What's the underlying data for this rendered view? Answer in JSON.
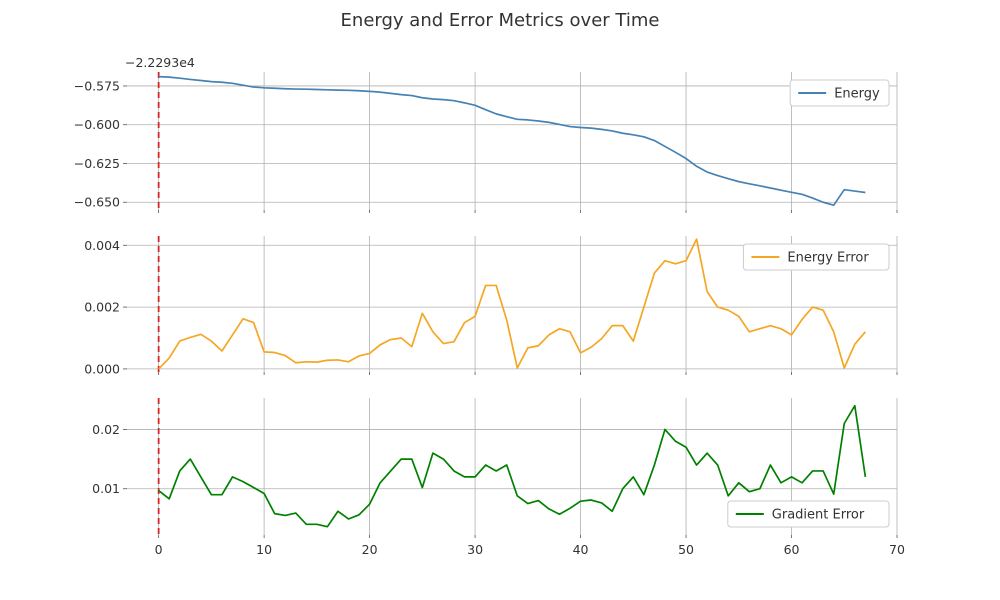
{
  "chart_data": {
    "title": "Energy and Error Metrics over Time",
    "marker_x": 0,
    "x_ticks": [
      0,
      10,
      20,
      30,
      40,
      50,
      60,
      70
    ],
    "xlim": [
      -3,
      70
    ],
    "panels": [
      {
        "type": "line",
        "series_name": "Energy",
        "color": "#4682b4",
        "offset_label": "−2.2293e4",
        "ylim": [
          -0.655,
          -0.566
        ],
        "y_ticks": [
          -0.575,
          -0.6,
          -0.625,
          -0.65
        ],
        "y_tick_labels": [
          "−0.575",
          "−0.600",
          "−0.625",
          "−0.650"
        ],
        "legend_position": "top-right",
        "x": [
          0,
          1,
          2,
          3,
          4,
          5,
          6,
          7,
          8,
          9,
          10,
          11,
          12,
          13,
          14,
          15,
          16,
          17,
          18,
          19,
          20,
          21,
          22,
          23,
          24,
          25,
          26,
          27,
          28,
          29,
          30,
          31,
          32,
          33,
          34,
          35,
          36,
          37,
          38,
          39,
          40,
          41,
          42,
          43,
          44,
          45,
          46,
          47,
          48,
          49,
          50,
          51,
          52,
          53,
          54,
          55,
          56,
          57,
          58,
          59,
          60,
          61,
          62,
          63,
          64,
          65,
          66,
          67
        ],
        "y": [
          -0.569,
          -0.5693,
          -0.57,
          -0.5708,
          -0.5715,
          -0.5722,
          -0.5726,
          -0.5733,
          -0.5745,
          -0.5757,
          -0.5762,
          -0.5765,
          -0.5768,
          -0.577,
          -0.5771,
          -0.5773,
          -0.5775,
          -0.5777,
          -0.5778,
          -0.5781,
          -0.5785,
          -0.579,
          -0.5798,
          -0.5806,
          -0.5812,
          -0.5826,
          -0.5834,
          -0.5838,
          -0.5845,
          -0.5859,
          -0.5875,
          -0.5903,
          -0.593,
          -0.5948,
          -0.5965,
          -0.5969,
          -0.5976,
          -0.5985,
          -0.5998,
          -0.6012,
          -0.6018,
          -0.6022,
          -0.603,
          -0.604,
          -0.6055,
          -0.6065,
          -0.6078,
          -0.6102,
          -0.614,
          -0.6178,
          -0.6218,
          -0.6268,
          -0.6305,
          -0.6328,
          -0.6348,
          -0.6367,
          -0.6381,
          -0.6394,
          -0.6408,
          -0.6422,
          -0.6436,
          -0.6449,
          -0.6473,
          -0.65,
          -0.6519,
          -0.6419,
          -0.6428,
          -0.6437
        ]
      },
      {
        "type": "line",
        "series_name": "Energy Error",
        "color": "#f5a623",
        "ylim": [
          -0.0001,
          0.0043
        ],
        "y_ticks": [
          0.0,
          0.002,
          0.004
        ],
        "y_tick_labels": [
          "0.000",
          "0.002",
          "0.004"
        ],
        "legend_position": "top-right",
        "x": [
          0,
          1,
          2,
          3,
          4,
          5,
          6,
          7,
          8,
          9,
          10,
          11,
          12,
          13,
          14,
          15,
          16,
          17,
          18,
          19,
          20,
          21,
          22,
          23,
          24,
          25,
          26,
          27,
          28,
          29,
          30,
          31,
          32,
          33,
          34,
          35,
          36,
          37,
          38,
          39,
          40,
          41,
          42,
          43,
          44,
          45,
          46,
          47,
          48,
          49,
          50,
          51,
          52,
          53,
          54,
          55,
          56,
          57,
          58,
          59,
          60,
          61,
          62,
          63,
          64,
          65,
          66,
          67
        ],
        "y": [
          0.0,
          0.00035,
          0.0009,
          0.00102,
          0.00112,
          0.0009,
          0.00058,
          0.0011,
          0.00162,
          0.0015,
          0.00055,
          0.00053,
          0.00043,
          0.0002,
          0.00023,
          0.00022,
          0.00028,
          0.00029,
          0.00023,
          0.00042,
          0.0005,
          0.00078,
          0.00095,
          0.001,
          0.00072,
          0.0018,
          0.0012,
          0.00082,
          0.00088,
          0.0015,
          0.0017,
          0.0027,
          0.0027,
          0.00158,
          3e-05,
          0.00068,
          0.00075,
          0.0011,
          0.0013,
          0.0012,
          0.00052,
          0.0007,
          0.00098,
          0.0014,
          0.0014,
          0.0009,
          0.002,
          0.0031,
          0.0035,
          0.0034,
          0.0035,
          0.0042,
          0.0025,
          0.002,
          0.0019,
          0.0017,
          0.0012,
          0.0013,
          0.0014,
          0.0013,
          0.0011,
          0.0016,
          0.002,
          0.0019,
          0.0012,
          3e-05,
          0.0008,
          0.0012
        ]
      },
      {
        "type": "line",
        "series_name": "Gradient Error",
        "color": "#008000",
        "ylim": [
          0.0022,
          0.0253
        ],
        "y_ticks": [
          0.01,
          0.02
        ],
        "y_tick_labels": [
          "0.01",
          "0.02"
        ],
        "legend_position": "bottom-right",
        "x": [
          0,
          1,
          2,
          3,
          4,
          5,
          6,
          7,
          8,
          9,
          10,
          11,
          12,
          13,
          14,
          15,
          16,
          17,
          18,
          19,
          20,
          21,
          22,
          23,
          24,
          25,
          26,
          27,
          28,
          29,
          30,
          31,
          32,
          33,
          34,
          35,
          36,
          37,
          38,
          39,
          40,
          41,
          42,
          43,
          44,
          45,
          46,
          47,
          48,
          49,
          50,
          51,
          52,
          53,
          54,
          55,
          56,
          57,
          58,
          59,
          60,
          61,
          62,
          63,
          64,
          65,
          66,
          67
        ],
        "y": [
          0.0097,
          0.0083,
          0.013,
          0.015,
          0.012,
          0.009,
          0.009,
          0.012,
          0.0112,
          0.0102,
          0.0092,
          0.0058,
          0.0055,
          0.0059,
          0.004,
          0.004,
          0.0036,
          0.0062,
          0.0049,
          0.0056,
          0.0074,
          0.011,
          0.013,
          0.015,
          0.015,
          0.0102,
          0.016,
          0.015,
          0.013,
          0.012,
          0.012,
          0.014,
          0.013,
          0.014,
          0.0088,
          0.0075,
          0.008,
          0.0066,
          0.0057,
          0.0067,
          0.0079,
          0.0081,
          0.0076,
          0.0062,
          0.01,
          0.012,
          0.009,
          0.014,
          0.02,
          0.018,
          0.017,
          0.014,
          0.016,
          0.014,
          0.0088,
          0.011,
          0.0095,
          0.01,
          0.014,
          0.011,
          0.012,
          0.011,
          0.013,
          0.013,
          0.0091,
          0.021,
          0.024,
          0.012
        ]
      }
    ]
  }
}
